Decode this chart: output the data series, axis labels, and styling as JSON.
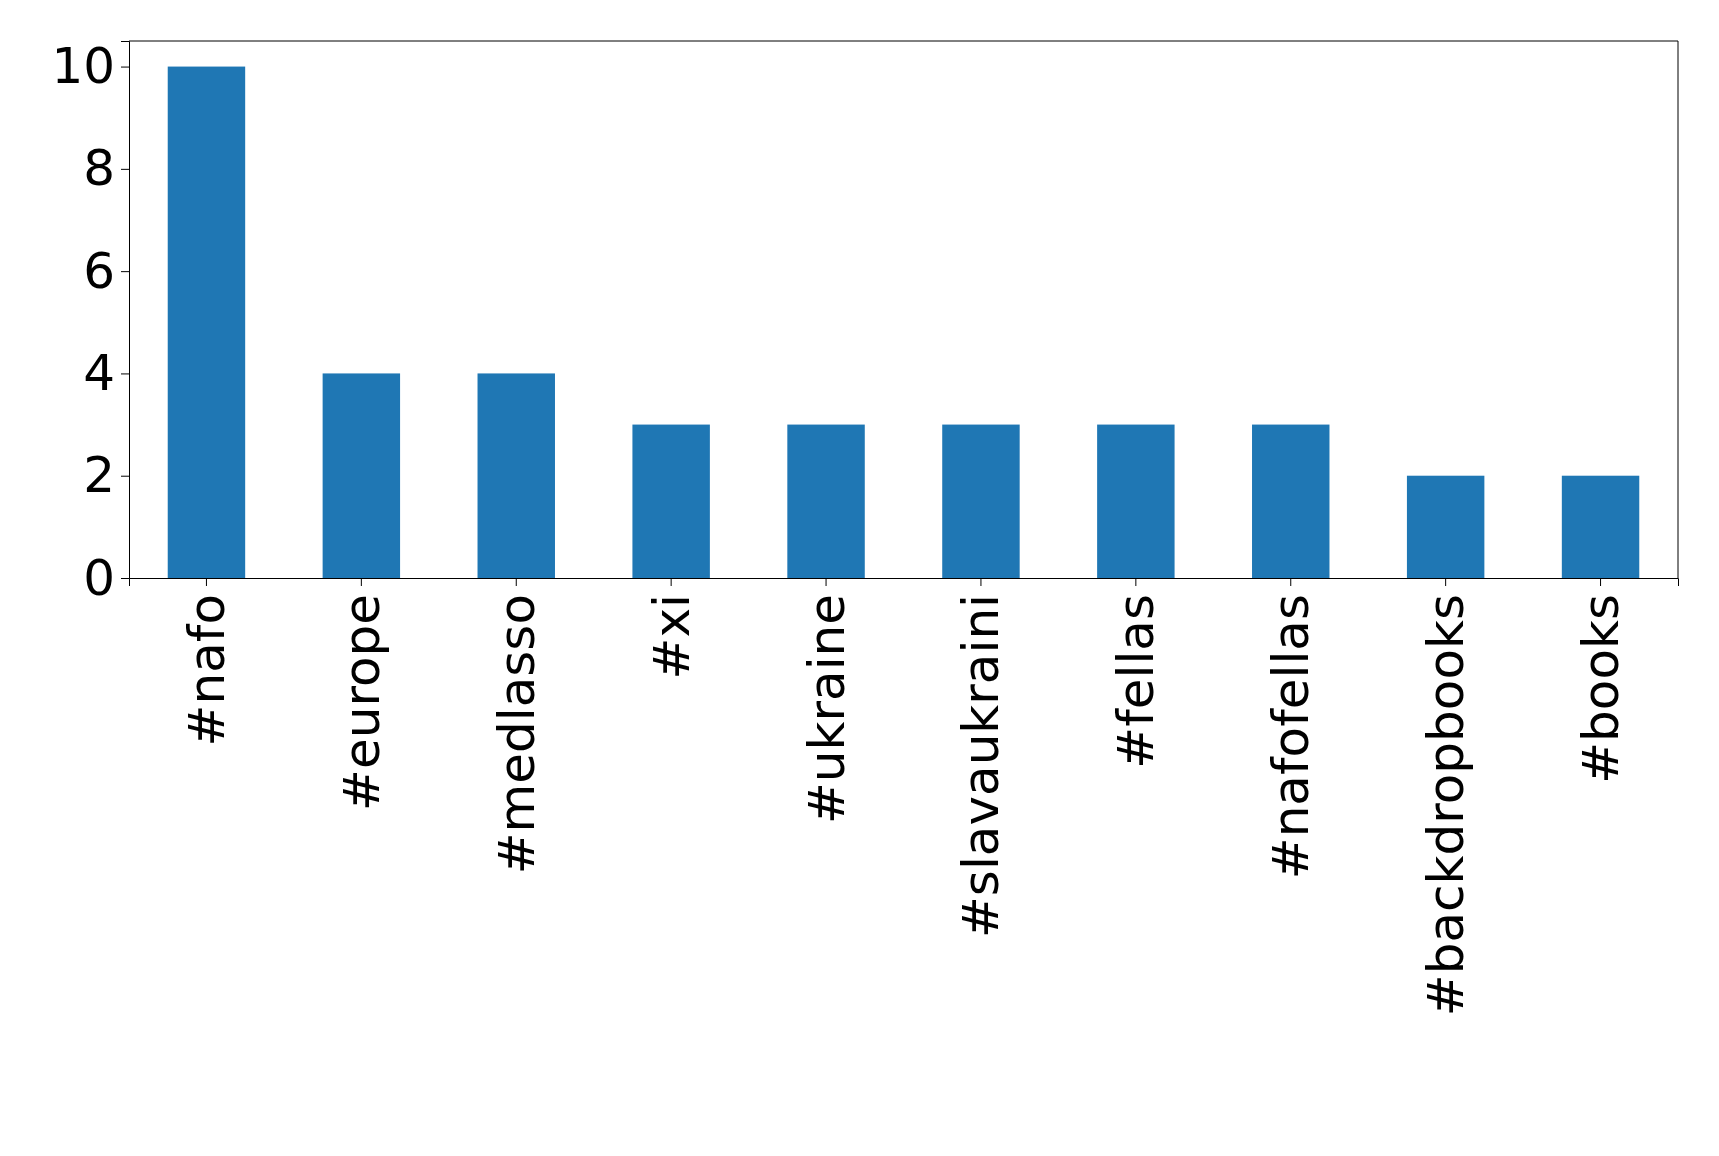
{
  "chart_data": {
    "type": "bar",
    "categories": [
      "#nafo",
      "#europe",
      "#medlasso",
      "#xi",
      "#ukraine",
      "#slavaukraini",
      "#fellas",
      "#nafofellas",
      "#backdropbooks",
      "#books"
    ],
    "values": [
      10,
      4,
      4,
      3,
      3,
      3,
      3,
      3,
      2,
      2
    ],
    "color": "#1f77b4",
    "ylim": [
      0,
      10.5
    ],
    "yticks": [
      0,
      2,
      4,
      6,
      8,
      10
    ],
    "grid": false
  }
}
